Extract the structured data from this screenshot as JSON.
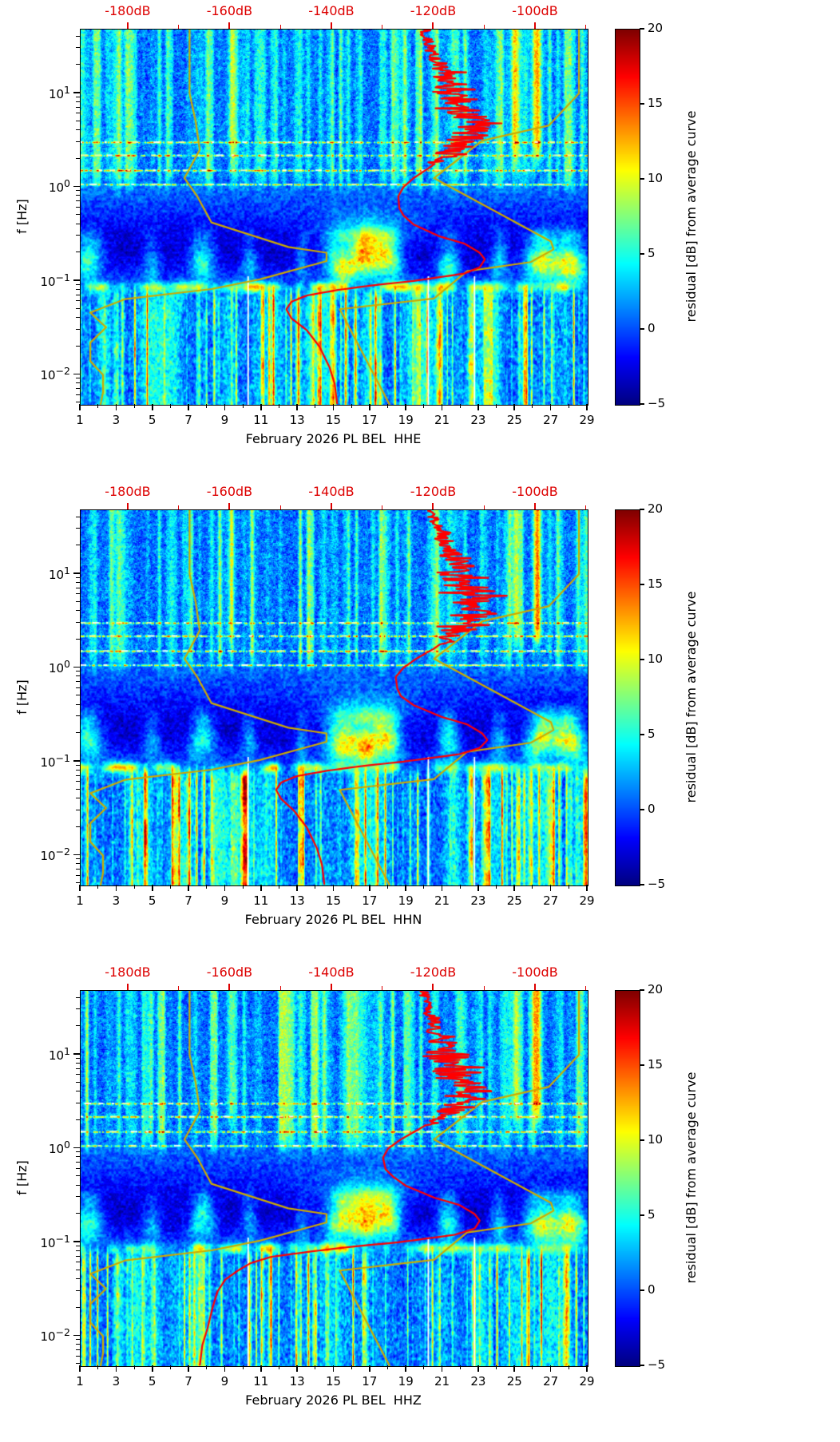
{
  "figure": {
    "background": "#ffffff"
  },
  "colors": {
    "axis": "#000000",
    "top_axis_red": "#dd0000",
    "psd_curve_red": "#ff0000",
    "noise_model_yellow": "#ccaa00",
    "data_gap_white": "#ffffff"
  },
  "chart_data": {
    "type": "heatmap",
    "colormap": "jet",
    "x_axis": {
      "range_days": [
        1,
        29
      ],
      "tick_values": [
        1,
        3,
        5,
        7,
        9,
        11,
        13,
        15,
        17,
        19,
        21,
        23,
        25,
        27,
        29
      ],
      "tick_labels": [
        "1",
        "3",
        "5",
        "7",
        "9",
        "11",
        "13",
        "15",
        "17",
        "19",
        "21",
        "23",
        "25",
        "27",
        "29"
      ],
      "minor_tick_values": [
        2,
        4,
        6,
        8,
        10,
        12,
        14,
        16,
        18,
        20,
        22,
        24,
        26,
        28
      ]
    },
    "top_axis": {
      "unit": "dB",
      "color": "#dd0000",
      "range_db": [
        -189.4,
        -89.8
      ],
      "tick_values": [
        -180,
        -160,
        -140,
        -120,
        -100
      ],
      "tick_labels": [
        "-180dB",
        "-160dB",
        "-140dB",
        "-120dB",
        "-100dB"
      ],
      "minor_tick_values": [
        -170,
        -150,
        -130,
        -110,
        -90
      ]
    },
    "y_axis": {
      "label": "f [Hz]",
      "scale": "log",
      "range_hz": [
        0.0048,
        47.9
      ],
      "major_ticks": [
        {
          "value_hz": 10,
          "exponent": 1
        },
        {
          "value_hz": 1,
          "exponent": 0
        },
        {
          "value_hz": 0.1,
          "exponent": -1
        },
        {
          "value_hz": 0.01,
          "exponent": -2
        }
      ]
    },
    "colorbar": {
      "label": "residual [dB] from average curve",
      "range": [
        -5,
        20
      ],
      "tick_values": [
        20,
        15,
        10,
        5,
        0,
        -5
      ],
      "tick_labels": [
        "20",
        "15",
        "10",
        "5",
        "0",
        "−5"
      ],
      "colormap": "jet"
    },
    "noise_models": {
      "color": "#ccaa00",
      "nlnm_points_f_hz_db": [
        [
          48,
          -168.0
        ],
        [
          10,
          -168.0
        ],
        [
          5,
          -166.8
        ],
        [
          2.5,
          -166.0
        ],
        [
          1.25,
          -169.0
        ],
        [
          0.8,
          -166.5
        ],
        [
          0.42,
          -163.7
        ],
        [
          0.23,
          -148.6
        ],
        [
          0.2,
          -141.1
        ],
        [
          0.163,
          -141.1
        ],
        [
          0.104,
          -154.2
        ],
        [
          0.082,
          -163.7
        ],
        [
          0.064,
          -180.7
        ],
        [
          0.046,
          -187.5
        ],
        [
          0.032,
          -184.4
        ],
        [
          0.022,
          -187.5
        ],
        [
          0.014,
          -187.5
        ],
        [
          0.01,
          -185.0
        ],
        [
          0.0065,
          -185.0
        ],
        [
          0.0048,
          -185.5
        ]
      ],
      "nhnm_points_f_hz_db": [
        [
          48,
          -91.5
        ],
        [
          10,
          -91.5
        ],
        [
          4.55,
          -97.4
        ],
        [
          3.13,
          -110.5
        ],
        [
          1.25,
          -120.0
        ],
        [
          0.263,
          -97.0
        ],
        [
          0.217,
          -96.5
        ],
        [
          0.159,
          -101.0
        ],
        [
          0.127,
          -113.5
        ],
        [
          0.065,
          -120.0
        ],
        [
          0.05,
          -138.5
        ],
        [
          0.0048,
          -128.7
        ]
      ]
    },
    "panels": [
      {
        "id": "HHE",
        "xlabel": "February 2026 PL BEL  HHE",
        "seed": 11,
        "psd_curve": {
          "color": "#ff0000",
          "jitter_min_f_hz": 1.8,
          "jitter_amp_db": 3.5,
          "points_f_hz_db": [
            [
              45,
              -122
            ],
            [
              30,
              -120.5
            ],
            [
              20,
              -119
            ],
            [
              14,
              -117.5
            ],
            [
              10,
              -116
            ],
            [
              7,
              -114
            ],
            [
              5,
              -112.5
            ],
            [
              4,
              -112
            ],
            [
              3,
              -114
            ],
            [
              2.5,
              -116
            ],
            [
              2,
              -118.5
            ],
            [
              1.6,
              -121
            ],
            [
              1.25,
              -124
            ],
            [
              1.0,
              -126
            ],
            [
              0.8,
              -127
            ],
            [
              0.6,
              -126.8
            ],
            [
              0.5,
              -126
            ],
            [
              0.4,
              -124
            ],
            [
              0.3,
              -119
            ],
            [
              0.25,
              -114
            ],
            [
              0.2,
              -111
            ],
            [
              0.17,
              -110
            ],
            [
              0.14,
              -111
            ],
            [
              0.12,
              -114
            ],
            [
              0.1,
              -124
            ],
            [
              0.09,
              -132
            ],
            [
              0.08,
              -139
            ],
            [
              0.07,
              -145
            ],
            [
              0.06,
              -148
            ],
            [
              0.05,
              -149
            ],
            [
              0.04,
              -148
            ],
            [
              0.03,
              -145
            ],
            [
              0.02,
              -142.5
            ],
            [
              0.012,
              -140.5
            ],
            [
              0.008,
              -139.5
            ],
            [
              0.0048,
              -139
            ]
          ]
        }
      },
      {
        "id": "HHN",
        "xlabel": "February 2026 PL BEL  HHN",
        "seed": 57,
        "psd_curve": {
          "color": "#ff0000",
          "jitter_min_f_hz": 1.8,
          "jitter_amp_db": 3.5,
          "points_f_hz_db": [
            [
              45,
              -120.5
            ],
            [
              30,
              -119
            ],
            [
              20,
              -117.5
            ],
            [
              14,
              -116
            ],
            [
              10,
              -114.5
            ],
            [
              7,
              -112.5
            ],
            [
              5,
              -111.5
            ],
            [
              4,
              -111
            ],
            [
              3,
              -113
            ],
            [
              2.5,
              -115
            ],
            [
              2,
              -117.5
            ],
            [
              1.6,
              -120
            ],
            [
              1.25,
              -123.5
            ],
            [
              1.0,
              -126
            ],
            [
              0.8,
              -127.5
            ],
            [
              0.6,
              -127.2
            ],
            [
              0.5,
              -126.5
            ],
            [
              0.4,
              -124
            ],
            [
              0.3,
              -118.5
            ],
            [
              0.25,
              -113.5
            ],
            [
              0.2,
              -110.5
            ],
            [
              0.17,
              -109.5
            ],
            [
              0.14,
              -111
            ],
            [
              0.12,
              -115
            ],
            [
              0.1,
              -126
            ],
            [
              0.09,
              -134
            ],
            [
              0.08,
              -141
            ],
            [
              0.07,
              -147
            ],
            [
              0.06,
              -150
            ],
            [
              0.05,
              -151
            ],
            [
              0.04,
              -150
            ],
            [
              0.03,
              -147.5
            ],
            [
              0.02,
              -145
            ],
            [
              0.012,
              -143
            ],
            [
              0.008,
              -142
            ],
            [
              0.0048,
              -141.5
            ]
          ]
        }
      },
      {
        "id": "HHZ",
        "xlabel": "February 2026 PL BEL  HHZ",
        "seed": 93,
        "psd_curve": {
          "color": "#ff0000",
          "jitter_min_f_hz": 1.8,
          "jitter_amp_db": 3.5,
          "points_f_hz_db": [
            [
              45,
              -122
            ],
            [
              30,
              -121
            ],
            [
              20,
              -120
            ],
            [
              14,
              -118.5
            ],
            [
              10,
              -117
            ],
            [
              7,
              -115
            ],
            [
              5,
              -113.5
            ],
            [
              4,
              -113
            ],
            [
              3,
              -115
            ],
            [
              2.5,
              -117
            ],
            [
              2,
              -120
            ],
            [
              1.6,
              -123
            ],
            [
              1.25,
              -126.5
            ],
            [
              1.0,
              -129
            ],
            [
              0.8,
              -130
            ],
            [
              0.6,
              -129.5
            ],
            [
              0.5,
              -128
            ],
            [
              0.4,
              -125.5
            ],
            [
              0.3,
              -120
            ],
            [
              0.25,
              -115
            ],
            [
              0.2,
              -112
            ],
            [
              0.17,
              -111
            ],
            [
              0.14,
              -112
            ],
            [
              0.12,
              -116
            ],
            [
              0.1,
              -127
            ],
            [
              0.09,
              -136
            ],
            [
              0.08,
              -144
            ],
            [
              0.07,
              -152
            ],
            [
              0.06,
              -156
            ],
            [
              0.05,
              -158.5
            ],
            [
              0.04,
              -161
            ],
            [
              0.03,
              -162.5
            ],
            [
              0.02,
              -163.5
            ],
            [
              0.012,
              -164.5
            ],
            [
              0.008,
              -165.5
            ],
            [
              0.0048,
              -166
            ]
          ]
        }
      }
    ]
  },
  "render_params": {
    "storms": [
      {
        "day": 1.4,
        "amp": 9,
        "width": 0.8
      },
      {
        "day": 4.9,
        "amp": 5,
        "width": 0.5
      },
      {
        "day": 7.7,
        "amp": 8,
        "width": 0.7
      },
      {
        "day": 10.3,
        "amp": 5,
        "width": 0.45
      },
      {
        "day": 13.2,
        "amp": 4,
        "width": 0.4
      },
      {
        "day": 15.4,
        "amp": 12,
        "width": 0.9
      },
      {
        "day": 16.8,
        "amp": 14,
        "width": 0.8
      },
      {
        "day": 18.0,
        "amp": 11,
        "width": 0.7
      },
      {
        "day": 21.3,
        "amp": 8,
        "width": 0.6
      },
      {
        "day": 24.1,
        "amp": 6,
        "width": 0.5
      },
      {
        "day": 26.4,
        "amp": 12,
        "width": 0.9
      },
      {
        "day": 28.0,
        "amp": 13,
        "width": 0.9
      }
    ],
    "hot_columns": [
      {
        "day": 26.2,
        "amp": 12
      },
      {
        "day": 25.0,
        "amp": 7
      },
      {
        "day": 9.3,
        "amp": 5
      }
    ],
    "resonance_lf": [
      0.03,
      0.18,
      0.34,
      0.48
    ],
    "gaps": [
      {
        "day": 10.25,
        "lf_hi": -0.95
      },
      {
        "day": 20.2,
        "lf_hi": -0.95
      },
      {
        "day": 22.75,
        "lf_hi": -0.95
      }
    ]
  }
}
